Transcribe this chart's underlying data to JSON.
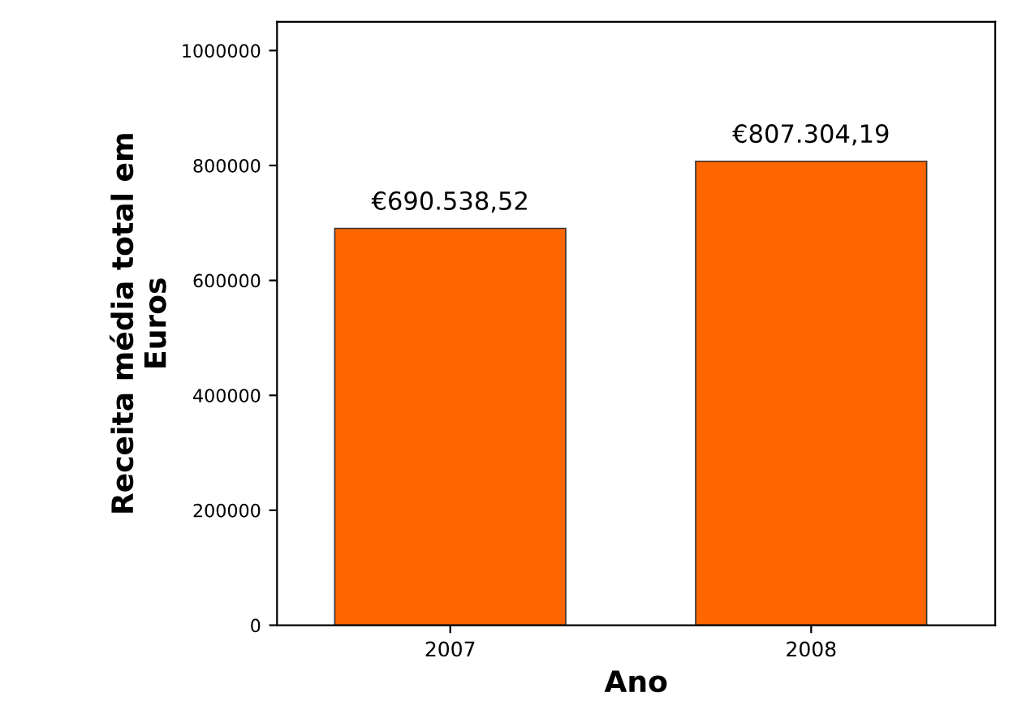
{
  "chart_data": {
    "type": "bar",
    "xlabel": "Ano",
    "ylabel": "Receita média total em\nEuros",
    "categories": [
      "2007",
      "2008"
    ],
    "values": [
      690538.52,
      807304.19
    ],
    "color": "#ff6600",
    "value_labels": [
      "€690.538,52",
      "€807.304,19"
    ],
    "ylim": [
      0,
      1050000
    ],
    "yticks": [
      0,
      200000,
      400000,
      600000,
      800000,
      1000000
    ],
    "grid": false,
    "legend": false
  }
}
